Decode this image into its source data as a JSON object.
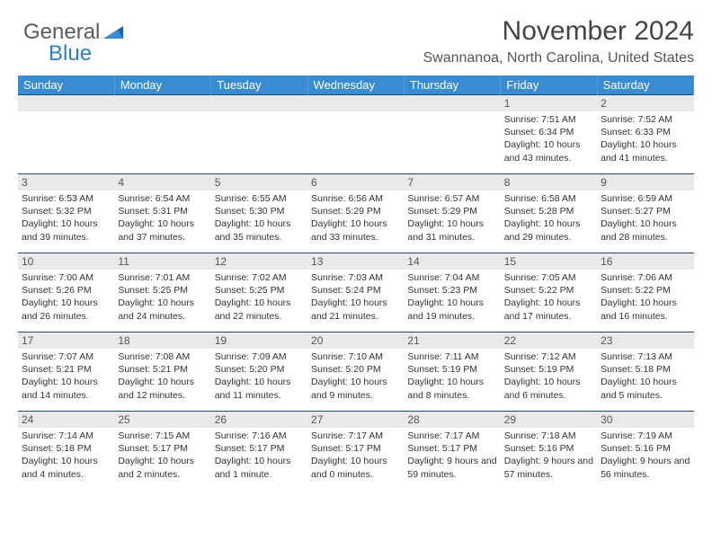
{
  "brand": {
    "word1": "General",
    "word2": "Blue"
  },
  "title": "November 2024",
  "location": "Swannanoa, North Carolina, United States",
  "colors": {
    "header_bg": "#3a8cd0",
    "header_text": "#ffffff",
    "daynum_bg": "#e9e9e9",
    "cell_border": "#1f4d7a",
    "text": "#333333",
    "brand_gray": "#5a5a5a",
    "brand_blue": "#2f7fc3"
  },
  "day_labels": [
    "Sunday",
    "Monday",
    "Tuesday",
    "Wednesday",
    "Thursday",
    "Friday",
    "Saturday"
  ],
  "weeks": [
    [
      null,
      null,
      null,
      null,
      null,
      {
        "n": "1",
        "sr": "Sunrise: 7:51 AM",
        "ss": "Sunset: 6:34 PM",
        "dl": "Daylight: 10 hours and 43 minutes."
      },
      {
        "n": "2",
        "sr": "Sunrise: 7:52 AM",
        "ss": "Sunset: 6:33 PM",
        "dl": "Daylight: 10 hours and 41 minutes."
      }
    ],
    [
      {
        "n": "3",
        "sr": "Sunrise: 6:53 AM",
        "ss": "Sunset: 5:32 PM",
        "dl": "Daylight: 10 hours and 39 minutes."
      },
      {
        "n": "4",
        "sr": "Sunrise: 6:54 AM",
        "ss": "Sunset: 5:31 PM",
        "dl": "Daylight: 10 hours and 37 minutes."
      },
      {
        "n": "5",
        "sr": "Sunrise: 6:55 AM",
        "ss": "Sunset: 5:30 PM",
        "dl": "Daylight: 10 hours and 35 minutes."
      },
      {
        "n": "6",
        "sr": "Sunrise: 6:56 AM",
        "ss": "Sunset: 5:29 PM",
        "dl": "Daylight: 10 hours and 33 minutes."
      },
      {
        "n": "7",
        "sr": "Sunrise: 6:57 AM",
        "ss": "Sunset: 5:29 PM",
        "dl": "Daylight: 10 hours and 31 minutes."
      },
      {
        "n": "8",
        "sr": "Sunrise: 6:58 AM",
        "ss": "Sunset: 5:28 PM",
        "dl": "Daylight: 10 hours and 29 minutes."
      },
      {
        "n": "9",
        "sr": "Sunrise: 6:59 AM",
        "ss": "Sunset: 5:27 PM",
        "dl": "Daylight: 10 hours and 28 minutes."
      }
    ],
    [
      {
        "n": "10",
        "sr": "Sunrise: 7:00 AM",
        "ss": "Sunset: 5:26 PM",
        "dl": "Daylight: 10 hours and 26 minutes."
      },
      {
        "n": "11",
        "sr": "Sunrise: 7:01 AM",
        "ss": "Sunset: 5:25 PM",
        "dl": "Daylight: 10 hours and 24 minutes."
      },
      {
        "n": "12",
        "sr": "Sunrise: 7:02 AM",
        "ss": "Sunset: 5:25 PM",
        "dl": "Daylight: 10 hours and 22 minutes."
      },
      {
        "n": "13",
        "sr": "Sunrise: 7:03 AM",
        "ss": "Sunset: 5:24 PM",
        "dl": "Daylight: 10 hours and 21 minutes."
      },
      {
        "n": "14",
        "sr": "Sunrise: 7:04 AM",
        "ss": "Sunset: 5:23 PM",
        "dl": "Daylight: 10 hours and 19 minutes."
      },
      {
        "n": "15",
        "sr": "Sunrise: 7:05 AM",
        "ss": "Sunset: 5:22 PM",
        "dl": "Daylight: 10 hours and 17 minutes."
      },
      {
        "n": "16",
        "sr": "Sunrise: 7:06 AM",
        "ss": "Sunset: 5:22 PM",
        "dl": "Daylight: 10 hours and 16 minutes."
      }
    ],
    [
      {
        "n": "17",
        "sr": "Sunrise: 7:07 AM",
        "ss": "Sunset: 5:21 PM",
        "dl": "Daylight: 10 hours and 14 minutes."
      },
      {
        "n": "18",
        "sr": "Sunrise: 7:08 AM",
        "ss": "Sunset: 5:21 PM",
        "dl": "Daylight: 10 hours and 12 minutes."
      },
      {
        "n": "19",
        "sr": "Sunrise: 7:09 AM",
        "ss": "Sunset: 5:20 PM",
        "dl": "Daylight: 10 hours and 11 minutes."
      },
      {
        "n": "20",
        "sr": "Sunrise: 7:10 AM",
        "ss": "Sunset: 5:20 PM",
        "dl": "Daylight: 10 hours and 9 minutes."
      },
      {
        "n": "21",
        "sr": "Sunrise: 7:11 AM",
        "ss": "Sunset: 5:19 PM",
        "dl": "Daylight: 10 hours and 8 minutes."
      },
      {
        "n": "22",
        "sr": "Sunrise: 7:12 AM",
        "ss": "Sunset: 5:19 PM",
        "dl": "Daylight: 10 hours and 6 minutes."
      },
      {
        "n": "23",
        "sr": "Sunrise: 7:13 AM",
        "ss": "Sunset: 5:18 PM",
        "dl": "Daylight: 10 hours and 5 minutes."
      }
    ],
    [
      {
        "n": "24",
        "sr": "Sunrise: 7:14 AM",
        "ss": "Sunset: 5:18 PM",
        "dl": "Daylight: 10 hours and 4 minutes."
      },
      {
        "n": "25",
        "sr": "Sunrise: 7:15 AM",
        "ss": "Sunset: 5:17 PM",
        "dl": "Daylight: 10 hours and 2 minutes."
      },
      {
        "n": "26",
        "sr": "Sunrise: 7:16 AM",
        "ss": "Sunset: 5:17 PM",
        "dl": "Daylight: 10 hours and 1 minute."
      },
      {
        "n": "27",
        "sr": "Sunrise: 7:17 AM",
        "ss": "Sunset: 5:17 PM",
        "dl": "Daylight: 10 hours and 0 minutes."
      },
      {
        "n": "28",
        "sr": "Sunrise: 7:17 AM",
        "ss": "Sunset: 5:17 PM",
        "dl": "Daylight: 9 hours and 59 minutes."
      },
      {
        "n": "29",
        "sr": "Sunrise: 7:18 AM",
        "ss": "Sunset: 5:16 PM",
        "dl": "Daylight: 9 hours and 57 minutes."
      },
      {
        "n": "30",
        "sr": "Sunrise: 7:19 AM",
        "ss": "Sunset: 5:16 PM",
        "dl": "Daylight: 9 hours and 56 minutes."
      }
    ]
  ]
}
